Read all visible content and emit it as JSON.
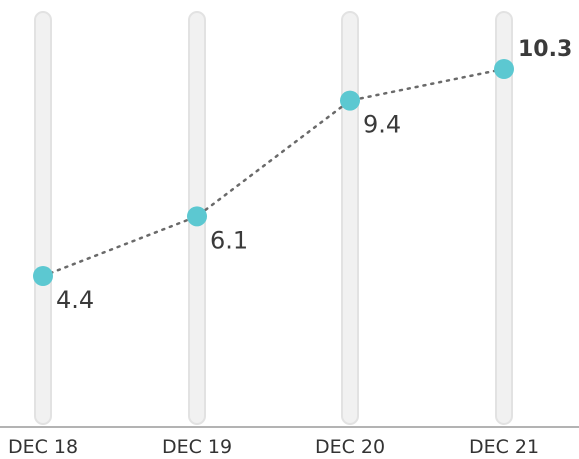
{
  "accent_color": "#5cc8d1",
  "line_color": "#6a6a6a",
  "chart_data": {
    "type": "line",
    "categories": [
      "DEC 18",
      "DEC 19",
      "DEC 20",
      "DEC 21"
    ],
    "values": [
      4.4,
      6.1,
      9.4,
      10.3
    ],
    "value_labels": [
      "4.4",
      "6.1",
      "9.4",
      "10.3"
    ],
    "highlight_last": true,
    "line_style": "dotted",
    "grid": false,
    "legend": "none",
    "ylim": [
      0,
      12
    ]
  }
}
